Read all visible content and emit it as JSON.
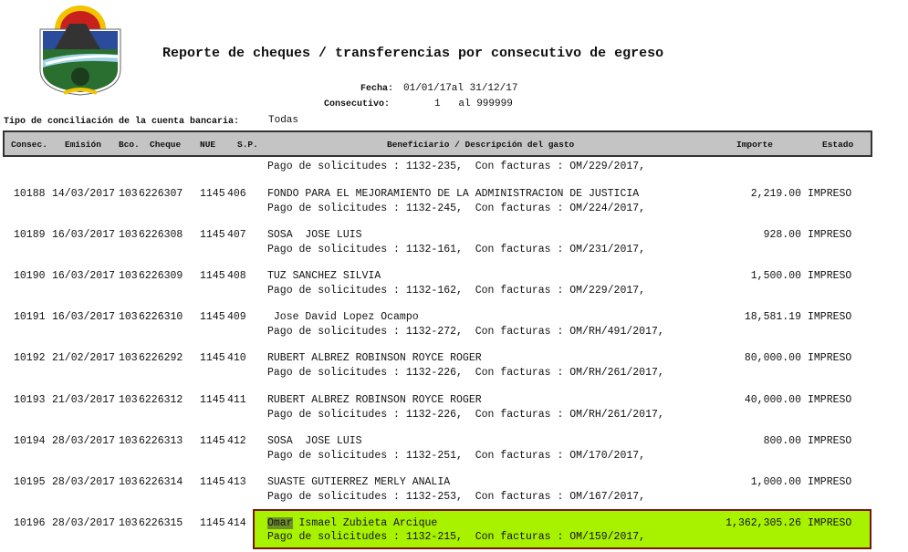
{
  "report": {
    "title": "Reporte de cheques / transferencias por consecutivo de egreso",
    "fecha_label": "Fecha:",
    "fecha_value": "01/01/17al 31/12/17",
    "consecutivo_label": "Consecutivo:",
    "consecutivo_value": "1   al 999999",
    "tipo_label": "Tipo de conciliación de la cuenta bancaria:",
    "tipo_value": "Todas"
  },
  "columns": {
    "consec": "Consec.",
    "emision": "Emisión",
    "bco": "Bco.",
    "cheque": "Cheque",
    "nue": "NUE",
    "sp": "S.P.",
    "beneficiario": "Beneficiario / Descripción del gasto",
    "importe": "Importe",
    "estado": "Estado"
  },
  "carryover_description": "Pago de solicitudes : 1132-235,  Con facturas : OM/229/2017,",
  "rows": [
    {
      "consec": "10188",
      "emision": "14/03/2017",
      "bco": "103",
      "cheque": "6226307",
      "nue": "1145",
      "sp": "406",
      "beneficiario": "FONDO PARA EL MEJORAMIENTO DE LA ADMINISTRACION DE JUSTICIA",
      "descripcion": "Pago de solicitudes : 1132-245,  Con facturas : OM/224/2017,",
      "importe": "2,219.00",
      "estado": "IMPRESO"
    },
    {
      "consec": "10189",
      "emision": "16/03/2017",
      "bco": "103",
      "cheque": "6226308",
      "nue": "1145",
      "sp": "407",
      "beneficiario": "SOSA  JOSE LUIS",
      "descripcion": "Pago de solicitudes : 1132-161,  Con facturas : OM/231/2017,",
      "importe": "928.00",
      "estado": "IMPRESO"
    },
    {
      "consec": "10190",
      "emision": "16/03/2017",
      "bco": "103",
      "cheque": "6226309",
      "nue": "1145",
      "sp": "408",
      "beneficiario": "TUZ SANCHEZ SILVIA",
      "descripcion": "Pago de solicitudes : 1132-162,  Con facturas : OM/229/2017,",
      "importe": "1,500.00",
      "estado": "IMPRESO"
    },
    {
      "consec": "10191",
      "emision": "16/03/2017",
      "bco": "103",
      "cheque": "6226310",
      "nue": "1145",
      "sp": "409",
      "beneficiario": " Jose David Lopez Ocampo",
      "descripcion": "Pago de solicitudes : 1132-272,  Con facturas : OM/RH/491/2017,",
      "importe": "18,581.19",
      "estado": "IMPRESO"
    },
    {
      "consec": "10192",
      "emision": "21/02/2017",
      "bco": "103",
      "cheque": "6226292",
      "nue": "1145",
      "sp": "410",
      "beneficiario": "RUBERT ALBREZ ROBINSON ROYCE ROGER",
      "descripcion": "Pago de solicitudes : 1132-226,  Con facturas : OM/RH/261/2017,",
      "importe": "80,000.00",
      "estado": "IMPRESO"
    },
    {
      "consec": "10193",
      "emision": "21/03/2017",
      "bco": "103",
      "cheque": "6226312",
      "nue": "1145",
      "sp": "411",
      "beneficiario": "RUBERT ALBREZ ROBINSON ROYCE ROGER",
      "descripcion": "Pago de solicitudes : 1132-226,  Con facturas : OM/RH/261/2017,",
      "importe": "40,000.00",
      "estado": "IMPRESO"
    },
    {
      "consec": "10194",
      "emision": "28/03/2017",
      "bco": "103",
      "cheque": "6226313",
      "nue": "1145",
      "sp": "412",
      "beneficiario": "SOSA  JOSE LUIS",
      "descripcion": "Pago de solicitudes : 1132-251,  Con facturas : OM/170/2017,",
      "importe": "800.00",
      "estado": "IMPRESO"
    },
    {
      "consec": "10195",
      "emision": "28/03/2017",
      "bco": "103",
      "cheque": "6226314",
      "nue": "1145",
      "sp": "413",
      "beneficiario": "SUASTE GUTIERREZ MERLY ANALIA",
      "descripcion": "Pago de solicitudes : 1132-253,  Con facturas : OM/167/2017,",
      "importe": "1,000.00",
      "estado": "IMPRESO"
    }
  ],
  "highlighted_row": {
    "consec": "10196",
    "emision": "28/03/2017",
    "bco": "103",
    "cheque": "6226315",
    "nue": "1145",
    "sp": "414",
    "beneficiario_marked": "Omar",
    "beneficiario_rest": " Ismael Zubieta Arcique",
    "descripcion": "Pago de solicitudes : 1132-215,  Con facturas : OM/159/2017,",
    "importe": "1,362,305.26",
    "estado": "IMPRESO"
  },
  "colors": {
    "highlight": "#a8f200",
    "highlight_border": "#7a1414",
    "header_bg": "#c4c4c4"
  }
}
